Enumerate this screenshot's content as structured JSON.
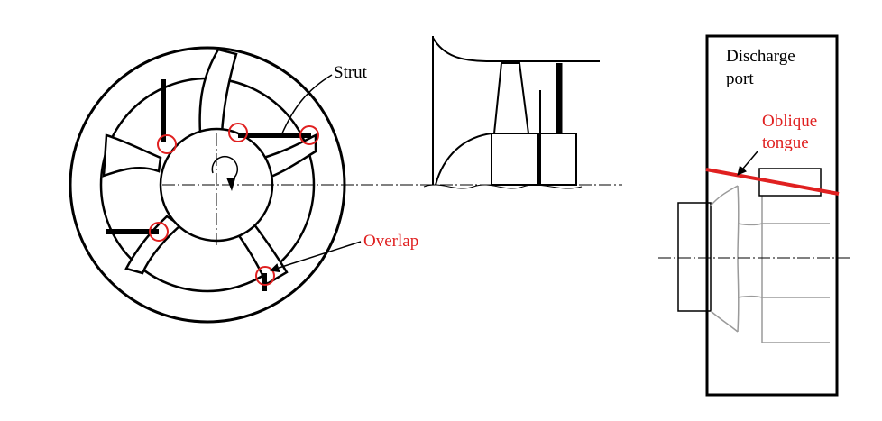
{
  "labels": {
    "strut": "Strut",
    "overlap": "Overlap",
    "discharge_line1": "Discharge",
    "discharge_line2": "port",
    "oblique_line1": "Oblique",
    "oblique_line2": "tongue"
  },
  "colors": {
    "line": "#000000",
    "highlight": "#e02020",
    "background": "#ffffff",
    "outline_gray": "#9a9a9a"
  }
}
